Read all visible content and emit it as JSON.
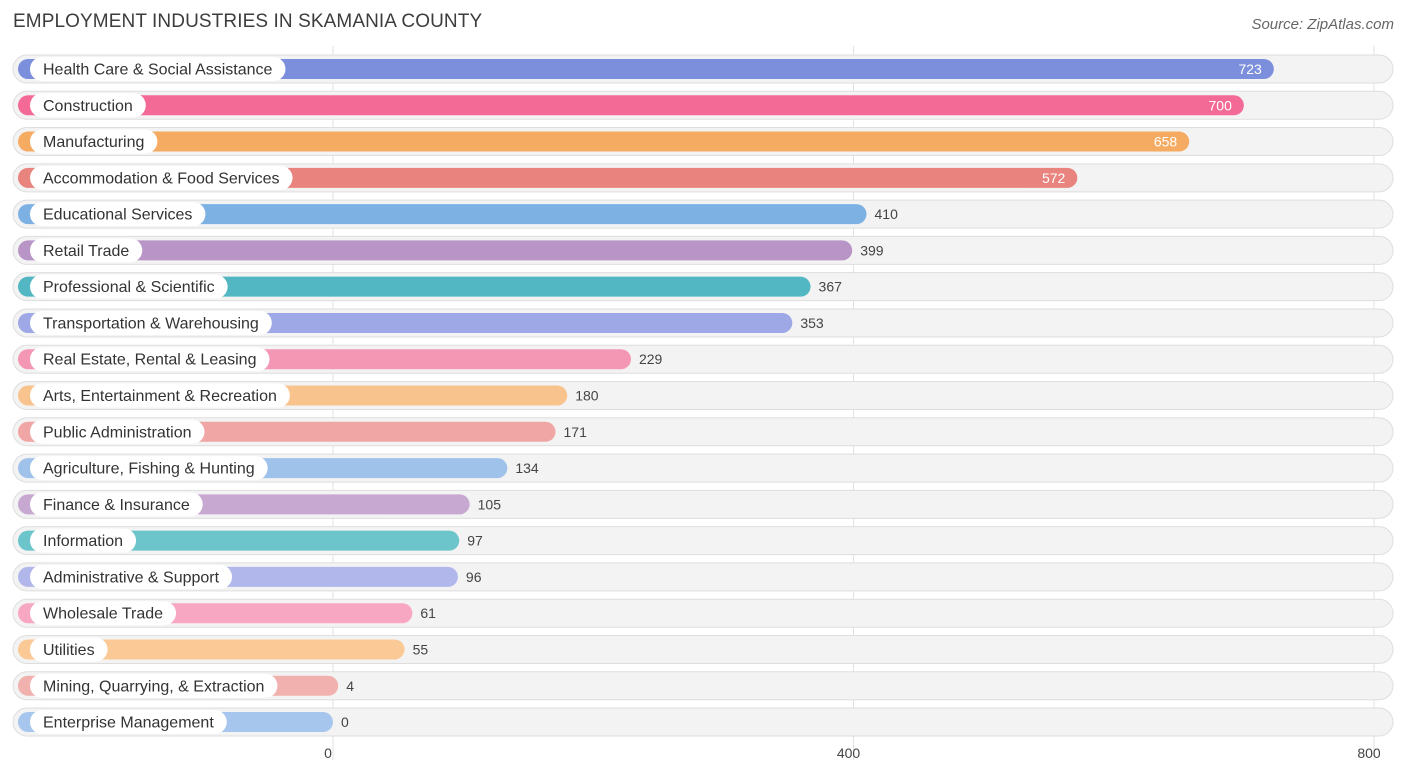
{
  "chart_data": {
    "type": "bar",
    "orientation": "horizontal",
    "title": "EMPLOYMENT INDUSTRIES IN SKAMANIA COUNTY",
    "source": "Source: ZipAtlas.com",
    "xlim": [
      0,
      800
    ],
    "xticks": [
      0,
      400,
      800
    ],
    "tick_labels": [
      "0",
      "400",
      "800"
    ],
    "grid": true,
    "categories": [
      "Health Care & Social Assistance",
      "Construction",
      "Manufacturing",
      "Accommodation & Food Services",
      "Educational Services",
      "Retail Trade",
      "Professional & Scientific",
      "Transportation & Warehousing",
      "Real Estate, Rental & Leasing",
      "Arts, Entertainment & Recreation",
      "Public Administration",
      "Agriculture, Fishing & Hunting",
      "Finance & Insurance",
      "Information",
      "Administrative & Support",
      "Wholesale Trade",
      "Utilities",
      "Mining, Quarrying, & Extraction",
      "Enterprise Management"
    ],
    "values": [
      723,
      700,
      658,
      572,
      410,
      399,
      367,
      353,
      229,
      180,
      171,
      134,
      105,
      97,
      96,
      61,
      55,
      4,
      0
    ],
    "colors": [
      "#7b8fdd",
      "#f46a97",
      "#f6ab63",
      "#e8837e",
      "#7eb1e3",
      "#b895c6",
      "#52b7c3",
      "#9ea8e6",
      "#f497b5",
      "#f9c38e",
      "#f0a6a4",
      "#9fc2ea",
      "#c7a8d1",
      "#6cc5cb",
      "#b1b7eb",
      "#f7a7c2",
      "#fbc995",
      "#f1b1ae",
      "#a6c6ed"
    ]
  }
}
